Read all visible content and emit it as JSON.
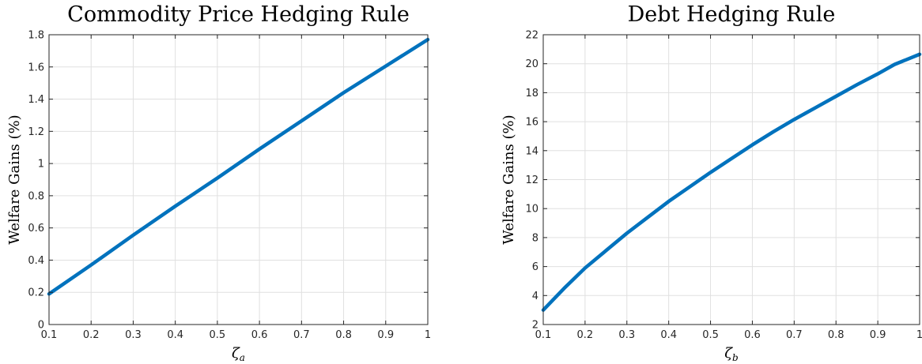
{
  "chart_data": [
    {
      "type": "line",
      "title": "Commodity Price Hedging Rule",
      "ylabel": "Welfare Gains (%)",
      "xlabel_symbol": "ζ",
      "xlabel_subscript": "a",
      "xlim": [
        0.1,
        1
      ],
      "ylim": [
        0,
        1.8
      ],
      "x_ticks": [
        0.1,
        0.2,
        0.3,
        0.4,
        0.5,
        0.6,
        0.7,
        0.8,
        0.9,
        1
      ],
      "x_tick_labels": [
        "0.1",
        "0.2",
        "0.3",
        "0.4",
        "0.5",
        "0.6",
        "0.7",
        "0.8",
        "0.9",
        "1"
      ],
      "y_ticks": [
        0,
        0.2,
        0.4,
        0.6,
        0.8,
        1,
        1.2,
        1.4,
        1.6,
        1.8
      ],
      "y_tick_labels": [
        "0",
        "0.2",
        "0.4",
        "0.6",
        "0.8",
        "1",
        "1.2",
        "1.4",
        "1.6",
        "1.8"
      ],
      "grid": true,
      "series": [
        {
          "color": "#0072BD",
          "x": [
            0.1,
            0.2,
            0.3,
            0.4,
            0.5,
            0.6,
            0.7,
            0.8,
            0.9,
            1.0
          ],
          "y": [
            0.19,
            0.37,
            0.555,
            0.735,
            0.91,
            1.09,
            1.265,
            1.44,
            1.605,
            1.77
          ]
        }
      ]
    },
    {
      "type": "line",
      "title": "Debt Hedging Rule",
      "ylabel": "Welfare Gains (%)",
      "xlabel_symbol": "ζ",
      "xlabel_subscript": "b",
      "xlim": [
        0.1,
        1
      ],
      "ylim": [
        2,
        22
      ],
      "x_ticks": [
        0.1,
        0.2,
        0.3,
        0.4,
        0.5,
        0.6,
        0.7,
        0.8,
        0.9,
        1
      ],
      "x_tick_labels": [
        "0.1",
        "0.2",
        "0.3",
        "0.4",
        "0.5",
        "0.6",
        "0.7",
        "0.8",
        "0.9",
        "1"
      ],
      "y_ticks": [
        2,
        4,
        6,
        8,
        10,
        12,
        14,
        16,
        18,
        20,
        22
      ],
      "y_tick_labels": [
        "2",
        "4",
        "6",
        "8",
        "10",
        "12",
        "14",
        "16",
        "18",
        "20",
        "22"
      ],
      "grid": true,
      "series": [
        {
          "color": "#0072BD",
          "x": [
            0.1,
            0.15,
            0.2,
            0.25,
            0.3,
            0.35,
            0.4,
            0.45,
            0.5,
            0.55,
            0.6,
            0.65,
            0.7,
            0.75,
            0.8,
            0.85,
            0.9,
            0.94,
            1.0
          ],
          "y": [
            3.0,
            4.5,
            5.9,
            7.1,
            8.3,
            9.4,
            10.5,
            11.5,
            12.5,
            13.45,
            14.4,
            15.3,
            16.15,
            16.95,
            17.75,
            18.55,
            19.3,
            19.95,
            20.65
          ]
        }
      ]
    }
  ]
}
